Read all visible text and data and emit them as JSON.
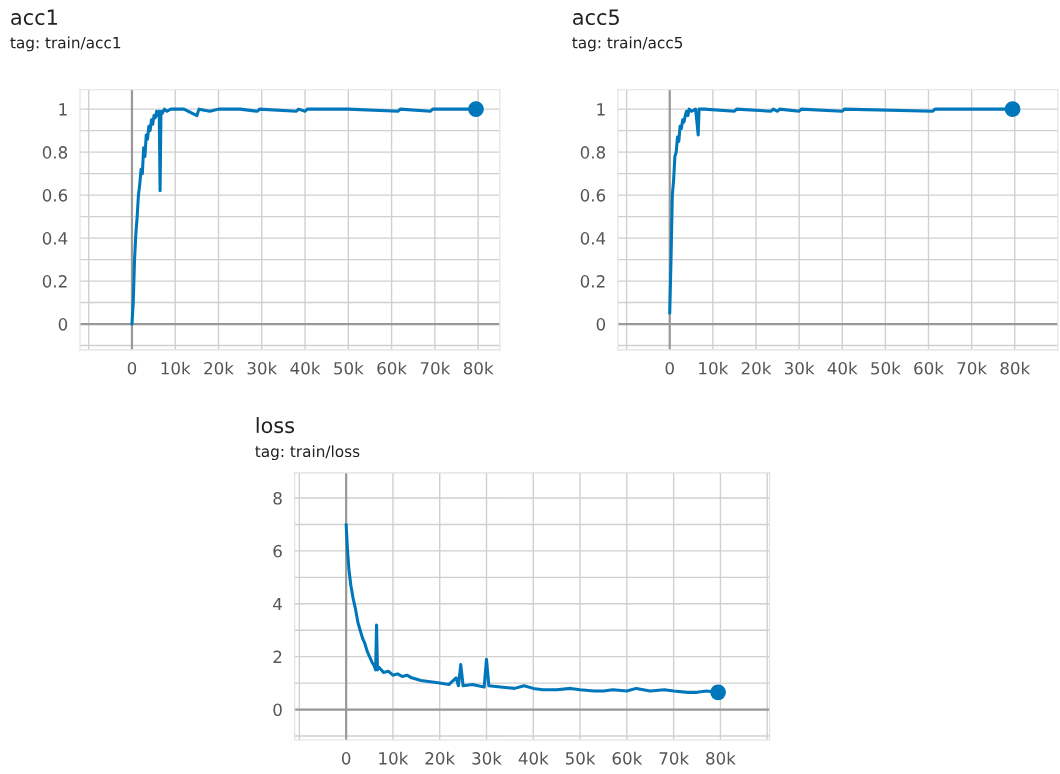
{
  "chart_data": [
    {
      "type": "line",
      "title": "acc1",
      "subtitle": "tag: train/acc1",
      "xlim": [
        -12000,
        85000
      ],
      "ylim": [
        -0.12,
        1.09
      ],
      "xticks": [
        {
          "value": -10000,
          "label": null
        },
        0,
        {
          "value": 10000,
          "label": "10k"
        },
        {
          "value": 20000,
          "label": "20k"
        },
        {
          "value": 30000,
          "label": "30k"
        },
        {
          "value": 40000,
          "label": "40k"
        },
        {
          "value": 50000,
          "label": "50k"
        },
        {
          "value": 60000,
          "label": "60k"
        },
        {
          "value": 70000,
          "label": "70k"
        },
        {
          "value": 80000,
          "label": "80k"
        }
      ],
      "yticks": [
        {
          "value": -0.1,
          "label": null
        },
        0,
        {
          "value": 0.1,
          "label": null
        },
        0.2,
        {
          "value": 0.3,
          "label": null
        },
        0.4,
        {
          "value": 0.5,
          "label": null
        },
        0.6,
        {
          "value": 0.7,
          "label": null
        },
        0.8,
        {
          "value": 0.9,
          "label": null
        },
        1
      ],
      "grid": true,
      "series": [
        {
          "color": "#0077bb",
          "x": [
            0,
            300,
            600,
            900,
            1200,
            1500,
            1800,
            2100,
            2400,
            2700,
            3000,
            3300,
            3600,
            3900,
            4200,
            4500,
            4800,
            5100,
            5400,
            5700,
            6000,
            6300,
            6500,
            6700,
            7000,
            7500,
            8000,
            9000,
            12000,
            15000,
            15500,
            18000,
            20000,
            25000,
            29000,
            29500,
            38000,
            38500,
            40000,
            40500,
            50000,
            61500,
            62000,
            69000,
            69500,
            79500
          ],
          "values": [
            0,
            0.1,
            0.3,
            0.42,
            0.5,
            0.6,
            0.65,
            0.72,
            0.7,
            0.82,
            0.78,
            0.88,
            0.86,
            0.92,
            0.9,
            0.95,
            0.93,
            0.97,
            0.96,
            0.99,
            0.97,
            0.99,
            0.62,
            0.99,
            0.98,
            1,
            0.99,
            1,
            1,
            0.97,
            1,
            0.99,
            1,
            1,
            0.99,
            1,
            0.99,
            1,
            0.99,
            1,
            1,
            0.99,
            1,
            0.99,
            1,
            1
          ]
        },
        {
          "type": "scatter",
          "color": "#0077bb",
          "x": [
            79500
          ],
          "values": [
            1
          ],
          "marker": "circle"
        }
      ]
    },
    {
      "type": "line",
      "title": "acc5",
      "subtitle": "tag: train/acc5",
      "xlim": [
        -12000,
        90000
      ],
      "ylim": [
        -0.12,
        1.09
      ],
      "xticks": [
        {
          "value": -10000,
          "label": null
        },
        0,
        {
          "value": 10000,
          "label": "10k"
        },
        {
          "value": 20000,
          "label": "20k"
        },
        {
          "value": 30000,
          "label": "30k"
        },
        {
          "value": 40000,
          "label": "40k"
        },
        {
          "value": 50000,
          "label": "50k"
        },
        {
          "value": 60000,
          "label": "60k"
        },
        {
          "value": 70000,
          "label": "70k"
        },
        {
          "value": 80000,
          "label": "80k"
        }
      ],
      "yticks": [
        {
          "value": -0.1,
          "label": null
        },
        0,
        {
          "value": 0.1,
          "label": null
        },
        0.2,
        {
          "value": 0.3,
          "label": null
        },
        0.4,
        {
          "value": 0.5,
          "label": null
        },
        0.6,
        {
          "value": 0.7,
          "label": null
        },
        0.8,
        {
          "value": 0.9,
          "label": null
        },
        1
      ],
      "grid": true,
      "series": [
        {
          "color": "#0077bb",
          "x": [
            0,
            300,
            600,
            900,
            1200,
            1500,
            1800,
            2100,
            2400,
            2700,
            3000,
            3300,
            3600,
            3900,
            4200,
            4500,
            5000,
            6000,
            6600,
            6800,
            8000,
            15000,
            15500,
            23500,
            24000,
            25000,
            25500,
            30000,
            30500,
            40000,
            40500,
            61000,
            61500,
            79500
          ],
          "values": [
            0.05,
            0.3,
            0.6,
            0.67,
            0.78,
            0.8,
            0.87,
            0.85,
            0.92,
            0.91,
            0.95,
            0.94,
            0.97,
            0.99,
            0.97,
            1,
            0.99,
            1,
            0.88,
            1,
            1,
            0.99,
            1,
            0.99,
            1,
            0.99,
            1,
            0.99,
            1,
            0.99,
            1,
            0.99,
            1,
            1
          ]
        },
        {
          "type": "scatter",
          "color": "#0077bb",
          "x": [
            79500
          ],
          "values": [
            1
          ],
          "marker": "circle"
        }
      ]
    },
    {
      "type": "line",
      "title": "loss",
      "subtitle": "tag: train/loss",
      "xlim": [
        -11000,
        90500
      ],
      "ylim": [
        -1.15,
        8.95
      ],
      "xticks": [
        {
          "value": -10000,
          "label": null
        },
        0,
        {
          "value": 10000,
          "label": "10k"
        },
        {
          "value": 20000,
          "label": "20k"
        },
        {
          "value": 30000,
          "label": "30k"
        },
        {
          "value": 40000,
          "label": "40k"
        },
        {
          "value": 50000,
          "label": "50k"
        },
        {
          "value": 60000,
          "label": "60k"
        },
        {
          "value": 70000,
          "label": "70k"
        },
        {
          "value": 80000,
          "label": "80k"
        },
        {
          "value": 90000,
          "label": null
        }
      ],
      "yticks": [
        {
          "value": -1,
          "label": null
        },
        0,
        {
          "value": 1,
          "label": null
        },
        2,
        {
          "value": 3,
          "label": null
        },
        4,
        {
          "value": 5,
          "label": null
        },
        6,
        {
          "value": 7,
          "label": null
        },
        8
      ],
      "grid": true,
      "series": [
        {
          "color": "#0077bb",
          "x": [
            0,
            300,
            600,
            1000,
            1500,
            2000,
            2500,
            3000,
            3500,
            4000,
            4500,
            5000,
            5500,
            6000,
            6300,
            6500,
            6700,
            7000,
            8000,
            9000,
            10000,
            11000,
            12000,
            13000,
            14000,
            16000,
            18000,
            20000,
            22000,
            23500,
            24000,
            24500,
            25000,
            27000,
            29500,
            30000,
            30500,
            33000,
            36000,
            38000,
            40000,
            42000,
            45000,
            48000,
            50000,
            53000,
            55000,
            57000,
            60000,
            62000,
            65000,
            68000,
            70000,
            73000,
            75000,
            77000,
            79500
          ],
          "values": [
            7.0,
            6.0,
            5.3,
            4.7,
            4.2,
            3.8,
            3.3,
            3.0,
            2.7,
            2.5,
            2.2,
            2.0,
            1.8,
            1.65,
            1.5,
            3.2,
            1.5,
            1.6,
            1.4,
            1.45,
            1.3,
            1.35,
            1.25,
            1.3,
            1.2,
            1.1,
            1.05,
            1.0,
            0.95,
            1.2,
            0.9,
            1.7,
            0.9,
            0.95,
            0.85,
            1.9,
            0.9,
            0.85,
            0.8,
            0.9,
            0.8,
            0.75,
            0.75,
            0.8,
            0.75,
            0.7,
            0.7,
            0.75,
            0.7,
            0.8,
            0.7,
            0.75,
            0.7,
            0.65,
            0.65,
            0.7,
            0.65
          ]
        },
        {
          "type": "scatter",
          "color": "#0077bb",
          "x": [
            79500
          ],
          "values": [
            0.65
          ],
          "marker": "circle"
        }
      ]
    }
  ]
}
